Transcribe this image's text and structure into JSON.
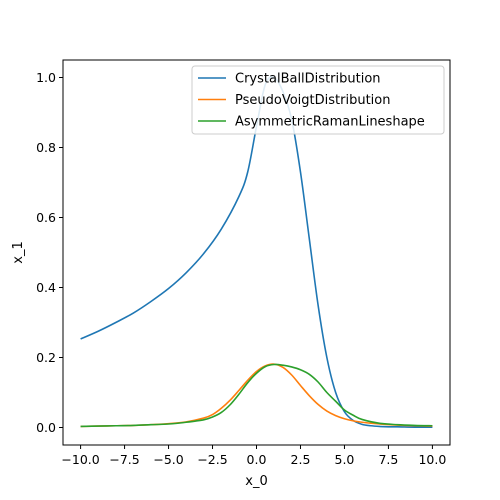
{
  "chart_data": {
    "type": "line",
    "title": "",
    "xlabel": "x_0",
    "ylabel": "x_1",
    "xlim": [
      -11,
      11
    ],
    "ylim": [
      -0.05,
      1.05
    ],
    "xticks": [
      -10,
      -7.5,
      -5,
      -2.5,
      0,
      2.5,
      5,
      7.5,
      10
    ],
    "xtick_labels": [
      "−10.0",
      "−7.5",
      "−5.0",
      "−2.5",
      "0.0",
      "2.5",
      "5.0",
      "7.5",
      "10.0"
    ],
    "yticks": [
      0,
      0.2,
      0.4,
      0.6,
      0.8,
      1.0
    ],
    "ytick_labels": [
      "0.0",
      "0.2",
      "0.4",
      "0.6",
      "0.8",
      "1.0"
    ],
    "grid": false,
    "legend_position": "top-right",
    "series": [
      {
        "name": "CrystalBallDistribution",
        "color": "#1f77b4",
        "x": [
          -10,
          -9,
          -8,
          -7,
          -6,
          -5,
          -4,
          -3,
          -2,
          -1,
          -0.5,
          0,
          0.5,
          1,
          1.5,
          2,
          2.5,
          3,
          3.5,
          4,
          4.5,
          5,
          5.5,
          6,
          6.5,
          7,
          7.5,
          8,
          9,
          10
        ],
        "y": [
          0.253,
          0.275,
          0.3,
          0.327,
          0.36,
          0.397,
          0.442,
          0.497,
          0.567,
          0.66,
          0.73,
          0.86,
          0.98,
          1.0,
          0.96,
          0.88,
          0.73,
          0.54,
          0.35,
          0.2,
          0.1,
          0.045,
          0.02,
          0.009,
          0.005,
          0.003,
          0.002,
          0.002,
          0.001,
          0.001
        ]
      },
      {
        "name": "PseudoVoigtDistribution",
        "color": "#ff7f0e",
        "x": [
          -10,
          -9,
          -8,
          -7,
          -6,
          -5,
          -4,
          -3,
          -2.5,
          -2,
          -1.5,
          -1,
          -0.5,
          0,
          0.5,
          1,
          1.5,
          2,
          2.5,
          3,
          3.5,
          4,
          4.5,
          5,
          5.5,
          6,
          7,
          8,
          9,
          10
        ],
        "y": [
          0.003,
          0.004,
          0.005,
          0.006,
          0.008,
          0.011,
          0.016,
          0.027,
          0.037,
          0.055,
          0.078,
          0.106,
          0.135,
          0.16,
          0.176,
          0.181,
          0.172,
          0.15,
          0.12,
          0.091,
          0.066,
          0.047,
          0.034,
          0.025,
          0.019,
          0.015,
          0.01,
          0.007,
          0.005,
          0.004
        ]
      },
      {
        "name": "AsymmetricRamanLineshape",
        "color": "#2ca02c",
        "x": [
          -10,
          -9,
          -8,
          -7,
          -6,
          -5,
          -4,
          -3,
          -2.5,
          -2,
          -1.5,
          -1,
          -0.5,
          0,
          0.5,
          1,
          1.5,
          2,
          2.5,
          3,
          3.5,
          4,
          4.5,
          5,
          5.5,
          6,
          7,
          8,
          9,
          10
        ],
        "y": [
          0.003,
          0.004,
          0.005,
          0.006,
          0.008,
          0.01,
          0.015,
          0.022,
          0.03,
          0.043,
          0.065,
          0.095,
          0.128,
          0.155,
          0.174,
          0.18,
          0.178,
          0.173,
          0.165,
          0.152,
          0.13,
          0.1,
          0.075,
          0.05,
          0.035,
          0.023,
          0.012,
          0.008,
          0.006,
          0.005
        ]
      }
    ]
  }
}
